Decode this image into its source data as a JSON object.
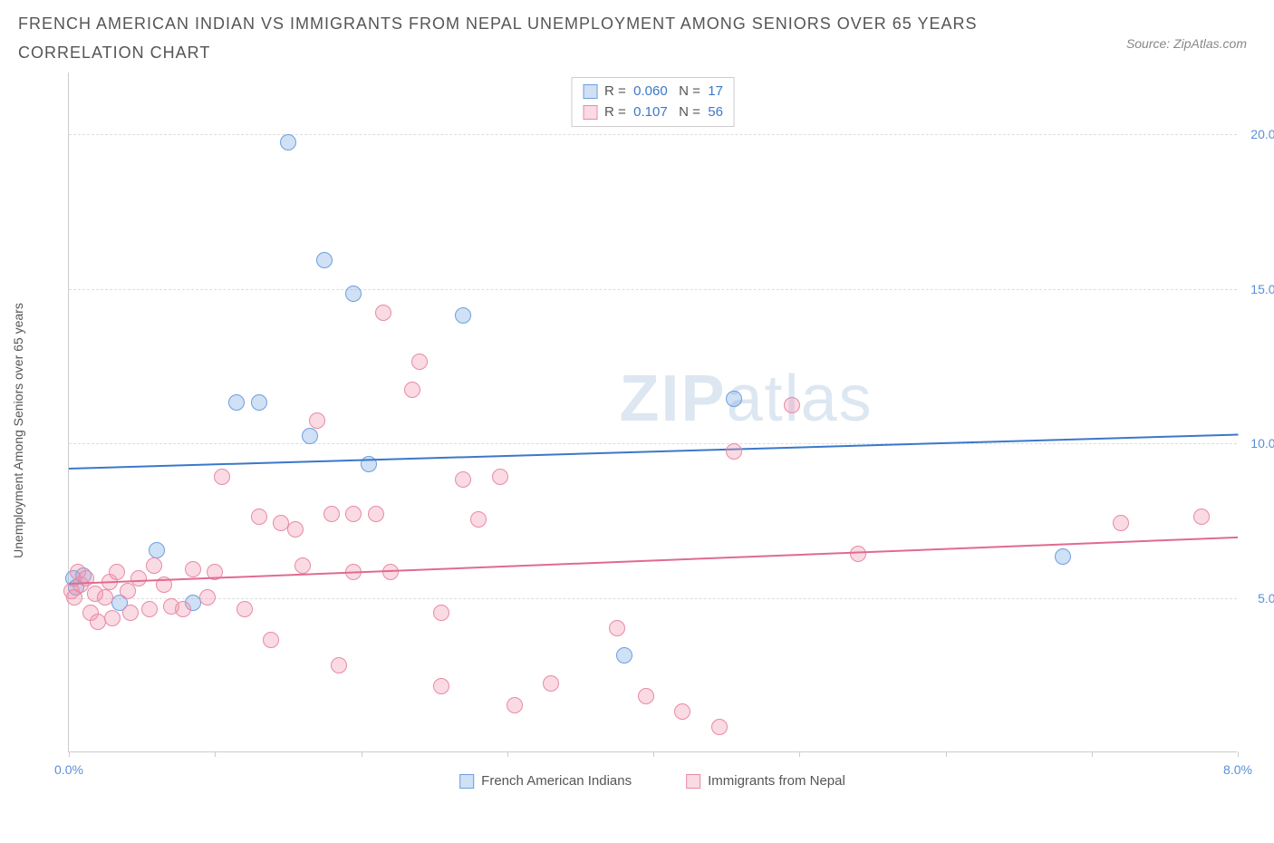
{
  "header": {
    "title": "FRENCH AMERICAN INDIAN VS IMMIGRANTS FROM NEPAL UNEMPLOYMENT AMONG SENIORS OVER 65 YEARS CORRELATION CHART",
    "source": "Source: ZipAtlas.com"
  },
  "watermark": {
    "part1": "ZIP",
    "part2": "atlas"
  },
  "chart": {
    "type": "scatter",
    "y_axis_label": "Unemployment Among Seniors over 65 years",
    "background_color": "#ffffff",
    "grid_color": "#dddddd",
    "axis_color": "#cccccc",
    "x_domain": [
      0,
      8
    ],
    "y_domain": [
      0,
      22
    ],
    "y_gridlines": [
      5,
      10,
      15,
      20
    ],
    "y_tick_labels": [
      "5.0%",
      "10.0%",
      "15.0%",
      "20.0%"
    ],
    "y_tick_color": "#5b8fd6",
    "x_ticks": [
      0,
      1,
      2,
      3,
      4,
      5,
      6,
      7,
      8
    ],
    "x_tick_label_left": "0.0%",
    "x_tick_label_right": "8.0%",
    "x_tick_label_color": "#5b8fd6",
    "point_radius": 9,
    "series": [
      {
        "key": "french",
        "label": "French American Indians",
        "fill": "rgba(120,165,225,0.35)",
        "stroke": "#6b9fe0",
        "trend_color": "#3b78c9",
        "trend": {
          "y_at_x0": 9.2,
          "y_at_xmax": 10.3
        },
        "R": "0.060",
        "N": "17",
        "points": [
          [
            0.03,
            5.6
          ],
          [
            0.05,
            5.3
          ],
          [
            0.1,
            5.7
          ],
          [
            0.35,
            4.8
          ],
          [
            0.6,
            6.5
          ],
          [
            0.85,
            4.8
          ],
          [
            1.15,
            11.3
          ],
          [
            1.3,
            11.3
          ],
          [
            1.5,
            19.7
          ],
          [
            1.65,
            10.2
          ],
          [
            1.75,
            15.9
          ],
          [
            1.95,
            14.8
          ],
          [
            2.05,
            9.3
          ],
          [
            2.7,
            14.1
          ],
          [
            3.8,
            3.1
          ],
          [
            4.55,
            11.4
          ],
          [
            6.8,
            6.3
          ]
        ]
      },
      {
        "key": "nepal",
        "label": "Immigrants from Nepal",
        "fill": "rgba(240,150,175,0.35)",
        "stroke": "#e88aa5",
        "trend_color": "#e06b8f",
        "trend": {
          "y_at_x0": 5.5,
          "y_at_xmax": 7.0
        },
        "R": "0.107",
        "N": "56",
        "points": [
          [
            0.02,
            5.2
          ],
          [
            0.04,
            5.0
          ],
          [
            0.06,
            5.8
          ],
          [
            0.08,
            5.4
          ],
          [
            0.12,
            5.6
          ],
          [
            0.15,
            4.5
          ],
          [
            0.18,
            5.1
          ],
          [
            0.2,
            4.2
          ],
          [
            0.25,
            5.0
          ],
          [
            0.28,
            5.5
          ],
          [
            0.3,
            4.3
          ],
          [
            0.33,
            5.8
          ],
          [
            0.4,
            5.2
          ],
          [
            0.42,
            4.5
          ],
          [
            0.48,
            5.6
          ],
          [
            0.55,
            4.6
          ],
          [
            0.58,
            6.0
          ],
          [
            0.65,
            5.4
          ],
          [
            0.7,
            4.7
          ],
          [
            0.78,
            4.6
          ],
          [
            0.85,
            5.9
          ],
          [
            0.95,
            5.0
          ],
          [
            1.0,
            5.8
          ],
          [
            1.05,
            8.9
          ],
          [
            1.2,
            4.6
          ],
          [
            1.3,
            7.6
          ],
          [
            1.38,
            3.6
          ],
          [
            1.45,
            7.4
          ],
          [
            1.55,
            7.2
          ],
          [
            1.6,
            6.0
          ],
          [
            1.7,
            10.7
          ],
          [
            1.8,
            7.7
          ],
          [
            1.85,
            2.8
          ],
          [
            1.95,
            7.7
          ],
          [
            1.95,
            5.8
          ],
          [
            2.1,
            7.7
          ],
          [
            2.15,
            14.2
          ],
          [
            2.2,
            5.8
          ],
          [
            2.35,
            11.7
          ],
          [
            2.4,
            12.6
          ],
          [
            2.55,
            4.5
          ],
          [
            2.55,
            2.1
          ],
          [
            2.7,
            8.8
          ],
          [
            2.8,
            7.5
          ],
          [
            2.95,
            8.9
          ],
          [
            3.05,
            1.5
          ],
          [
            3.3,
            2.2
          ],
          [
            3.75,
            4.0
          ],
          [
            3.95,
            1.8
          ],
          [
            4.2,
            1.3
          ],
          [
            4.45,
            0.8
          ],
          [
            4.55,
            9.7
          ],
          [
            4.95,
            11.2
          ],
          [
            5.4,
            6.4
          ],
          [
            7.2,
            7.4
          ],
          [
            7.75,
            7.6
          ]
        ]
      }
    ],
    "stats_legend": {
      "label_color": "#555555",
      "value_color": "#3b78c9",
      "R_label": "R =",
      "N_label": "N ="
    }
  }
}
